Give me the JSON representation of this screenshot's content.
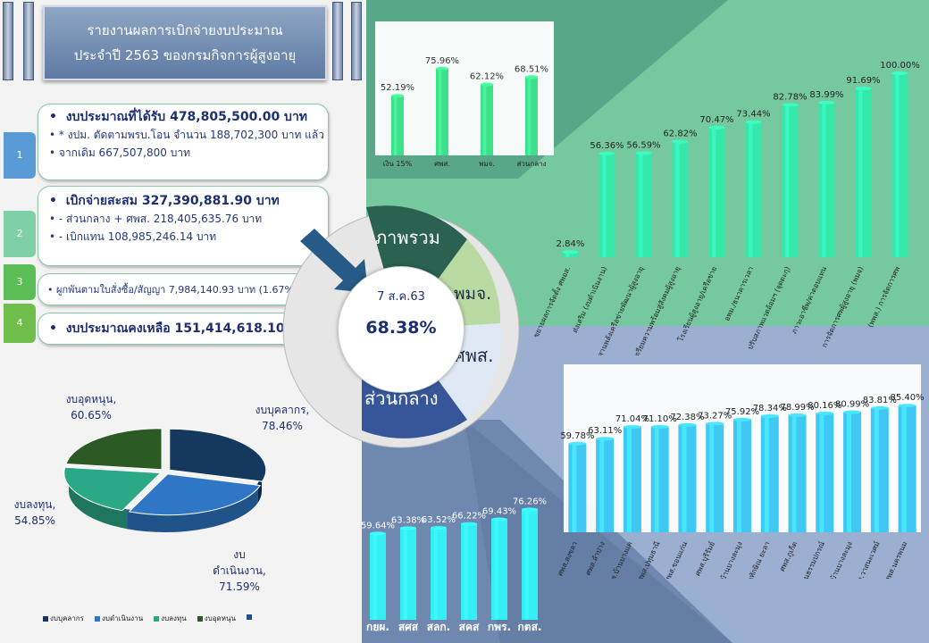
{
  "header": {
    "title_line1": "รายงานผลการเบิกจ่ายงบประมาณ",
    "title_line2": "ประจำปี 2563 ของกรมกิจการผู้สูงอายุ"
  },
  "steps": [
    {
      "num": "1",
      "lines": [
        "งบประมาณที่ได้รับ  478,805,500.00  บาท",
        "* งปม. ตัดตามพรบ.โอน  จำนวน 188,702,300 บาท แล้ว",
        "จากเดิม 667,507,800 บาท"
      ]
    },
    {
      "num": "2",
      "lines": [
        "เบิกจ่ายสะสม       327,390,881.90  บาท",
        "- ส่วนกลาง + ศพส.        218,405,635.76  บาท",
        "- เบิกแทน                   108,985,246.14  บาท"
      ]
    },
    {
      "num": "3",
      "lines": [
        "ผูกพันตามใบสั่งซื้อ/สัญญา    7,984,140.93  บาท (1.67%)"
      ]
    },
    {
      "num": "4",
      "lines": [
        "งบประมาณคงเหลือ  151,414,618.10  บาท"
      ]
    }
  ],
  "center": {
    "date": "7 ส.ค.63",
    "percent": "68.38%"
  },
  "segments": {
    "overall": "ภาพรวม",
    "pmj": "พมจ.",
    "spl": "ศพส.",
    "central": "ส่วนกลาง"
  },
  "chart_data": [
    {
      "type": "bar",
      "name": "overview",
      "categories": [
        "เงิน 15%",
        "ศพส.",
        "พมจ.",
        "ส่วนกลาง"
      ],
      "values": [
        52.19,
        75.96,
        62.12,
        68.51
      ],
      "value_labels": [
        "52.19%",
        "75.96%",
        "62.12%",
        "68.51%"
      ],
      "ylim": [
        0,
        100
      ],
      "color": "#3fe08a"
    },
    {
      "type": "bar",
      "name": "central-units",
      "categories": [
        "ขยายผลการจัดตั้ง ศพอส.",
        "ส่งเสริม (งบดำเนินงาน)",
        "สานพลังเครือข่ายพัฒนาผู้สูงอายุ",
        "เตรียมความพร้อมสู่สังคมผู้สูงอายุ",
        "โรงเรียนผู้สูงอายุ/เครือข่าย",
        "อพม./ธนาคารเวลา",
        "ปรับสภาพแวดล้อมฯ (จุดตะกุ)",
        "ภาวะอาชีพ/ค่าตอบแทน",
        "การจัดการศพผู้สูงอายุ (พมจ)",
        "(พพส.) การจัดการศพ"
      ],
      "values": [
        2.84,
        56.36,
        56.59,
        62.82,
        70.47,
        73.44,
        82.78,
        83.99,
        91.69,
        100.0
      ],
      "value_labels": [
        "2.84%",
        "56.36%",
        "56.59%",
        "62.82%",
        "70.47%",
        "73.44%",
        "82.78%",
        "83.99%",
        "91.69%",
        "100.00%"
      ],
      "ylim": [
        0,
        100
      ],
      "color": "#33e8a8"
    },
    {
      "type": "bar",
      "name": "spl-centers",
      "categories": [
        "ศพส.สงขลา",
        "ศพส.ลำปาง",
        "ศพส.บ้านบางแค",
        "ศพส.ปทุมธานี",
        "ศพส.ขอนแก่น",
        "ศพส.บุรีรัมย์",
        "ศพส.บ้านบางละมุง",
        "ศพส.บ้านทักษิณ ยะลา",
        "ศพส.ภูเก็ต",
        "ศพส.บ้านธรรมปกรณ์",
        "ศพส.บ้านบางละมุง",
        "ศพส.วาสนะเวศม์",
        "ศพส.นครพนม"
      ],
      "values": [
        59.78,
        63.11,
        71.04,
        71.1,
        72.38,
        73.27,
        75.92,
        78.34,
        78.99,
        80.16,
        80.99,
        83.81,
        85.4
      ],
      "value_labels": [
        "59.78%",
        "63.11%",
        "71.04%",
        "71.10%",
        "72.38%",
        "73.27%",
        "75.92%",
        "78.34%",
        "78.99%",
        "80.16%",
        "80.99%",
        "83.81%",
        "85.40%"
      ],
      "ylim": [
        0,
        100
      ],
      "color": "#3fc8f4"
    },
    {
      "type": "bar",
      "name": "central-divisions",
      "categories": [
        "กยผ.",
        "สศส",
        "สลก.",
        "สคส",
        "กพร.",
        "กตส."
      ],
      "values": [
        59.64,
        63.38,
        63.52,
        66.22,
        69.43,
        76.26
      ],
      "value_labels": [
        "59.64%",
        "63.38%",
        "63.52%",
        "66.22%",
        "69.43%",
        "76.26%"
      ],
      "ylim": [
        0,
        100
      ],
      "color": "#34f0f4"
    },
    {
      "type": "pie",
      "name": "budget-type",
      "categories": [
        "งบบุคลากร",
        "งบดำเนินงาน",
        "งบลงทุน",
        "งบอุดหนุน"
      ],
      "values": [
        78.46,
        71.59,
        54.85,
        60.65
      ],
      "labels": [
        "งบบุคลากร,\n78.46%",
        "งบ\nดำเนินงาน,\n71.59%",
        "งบลงทุน,\n54.85%",
        "งบอุดหนุน,\n60.65%"
      ],
      "colors": [
        "#15395e",
        "#2f77c6",
        "#2ba886",
        "#2b5a25"
      ],
      "legend": [
        "งบบุคลากร",
        "งบดำเนินงาน",
        "งบลงทุน",
        "งบอุดหนุน",
        ""
      ]
    }
  ]
}
